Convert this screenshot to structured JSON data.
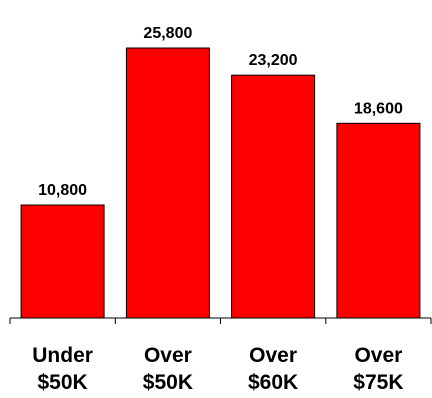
{
  "chart_data": {
    "type": "bar",
    "title": "",
    "xlabel": "",
    "ylabel": "",
    "categories": [
      "Under $50K",
      "Over $50K",
      "Over $60K",
      "Over $75K"
    ],
    "category_lines": [
      [
        "Under",
        "$50K"
      ],
      [
        "Over",
        "$50K"
      ],
      [
        "Over",
        "$60K"
      ],
      [
        "Over",
        "$75K"
      ]
    ],
    "values": [
      10800,
      25800,
      23200,
      18600
    ],
    "value_labels": [
      "10,800",
      "25,800",
      "23,200",
      "18,600"
    ],
    "ylim": [
      0,
      25800
    ],
    "grid": false,
    "legend": "none",
    "bar_color": "#ff0000",
    "bar_edge_color": "#000000",
    "axis_color": "#000000"
  }
}
